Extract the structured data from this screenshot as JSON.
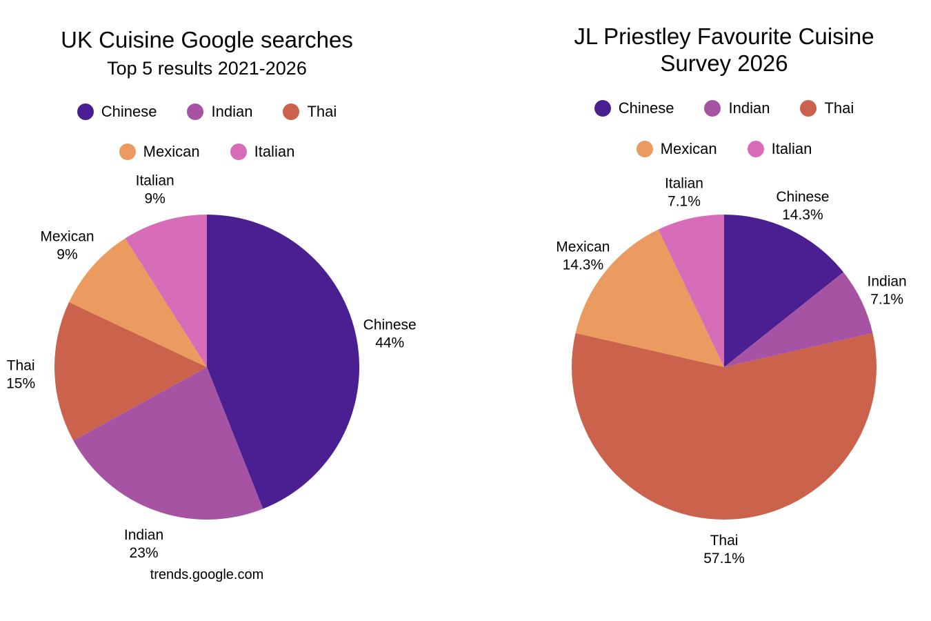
{
  "chart_data": [
    {
      "type": "pie",
      "title": "UK Cuisine Google searches",
      "subtitle": "Top 5 results 2021-2026",
      "source": "trends.google.com",
      "legend_position": "top",
      "categories": [
        "Chinese",
        "Indian",
        "Thai",
        "Mexican",
        "Italian"
      ],
      "values": [
        44,
        23,
        15,
        9,
        9
      ],
      "labels": [
        "44%",
        "23%",
        "15%",
        "9%",
        "9%"
      ],
      "colors": [
        "#4a1f91",
        "#a653a4",
        "#cb624b",
        "#eb9a60",
        "#d76cb8"
      ]
    },
    {
      "type": "pie",
      "title": "JL Priestley Favourite Cuisine Survey 2026",
      "legend_position": "top",
      "categories": [
        "Chinese",
        "Indian",
        "Thai",
        "Mexican",
        "Italian"
      ],
      "values": [
        14.3,
        7.1,
        57.1,
        14.3,
        7.1
      ],
      "labels": [
        "14.3%",
        "7.1%",
        "57.1%",
        "14.3%",
        "7.1%"
      ],
      "colors": [
        "#4a1f91",
        "#a653a4",
        "#cb624b",
        "#eb9a60",
        "#d76cb8"
      ]
    }
  ]
}
